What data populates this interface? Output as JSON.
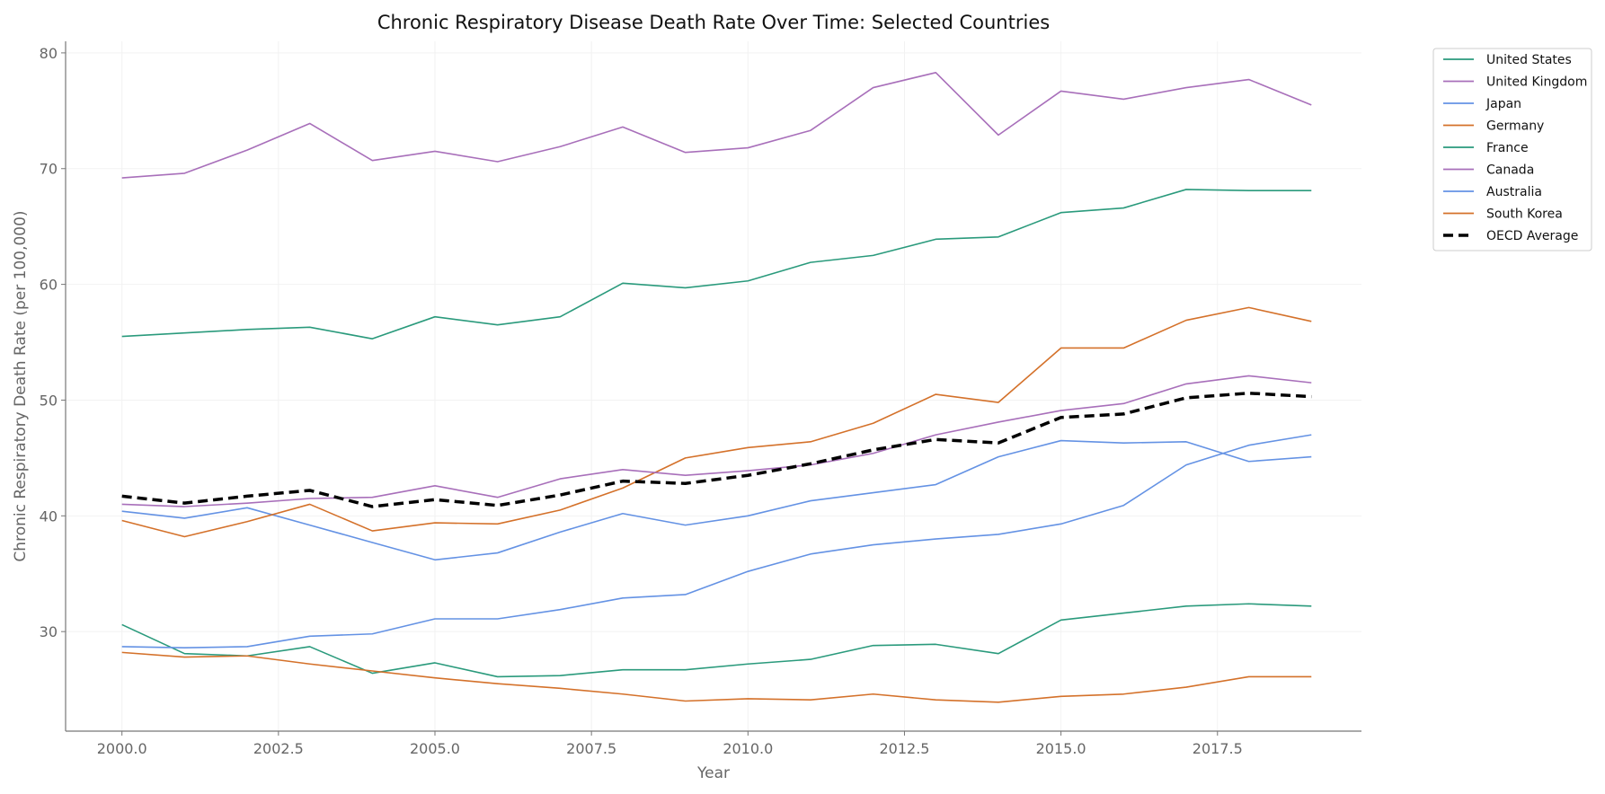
{
  "chart_data": {
    "type": "line",
    "title": "Chronic Respiratory Disease Death Rate Over Time: Selected Countries",
    "xlabel": "Year",
    "ylabel": "Chronic Respiratory Death Rate (per 100,000)",
    "xlim": [
      1999.1,
      2019.8
    ],
    "ylim": [
      21.4,
      81.0
    ],
    "xticks": [
      2000.0,
      2002.5,
      2005.0,
      2007.5,
      2010.0,
      2012.5,
      2015.0,
      2017.5
    ],
    "xtick_labels": [
      "2000.0",
      "2002.5",
      "2005.0",
      "2007.5",
      "2010.0",
      "2012.5",
      "2015.0",
      "2017.5"
    ],
    "yticks": [
      30,
      40,
      50,
      60,
      70,
      80
    ],
    "ytick_labels": [
      "30",
      "40",
      "50",
      "60",
      "70",
      "80"
    ],
    "grid": true,
    "legend_placement": "outside-top-right",
    "x": [
      2000,
      2001,
      2002,
      2003,
      2004,
      2005,
      2006,
      2007,
      2008,
      2009,
      2010,
      2011,
      2012,
      2013,
      2014,
      2015,
      2016,
      2017,
      2018,
      2019
    ],
    "series": [
      {
        "name": "United States",
        "color": "#2a9a7c",
        "dash": false,
        "values": [
          55.5,
          55.8,
          56.1,
          56.3,
          55.3,
          57.2,
          56.5,
          57.2,
          60.1,
          59.7,
          60.3,
          61.9,
          62.5,
          63.9,
          64.1,
          66.2,
          66.6,
          68.2,
          68.1,
          68.1
        ]
      },
      {
        "name": "United Kingdom",
        "color": "#a86fba",
        "dash": false,
        "values": [
          69.2,
          69.6,
          71.6,
          73.9,
          70.7,
          71.5,
          70.6,
          71.9,
          73.6,
          71.4,
          71.8,
          73.3,
          77.0,
          78.3,
          72.9,
          76.7,
          76.0,
          77.0,
          77.7,
          75.5
        ]
      },
      {
        "name": "Japan",
        "color": "#6492e4",
        "dash": false,
        "values": [
          40.4,
          39.8,
          40.7,
          39.2,
          37.7,
          36.2,
          36.8,
          38.6,
          40.2,
          39.2,
          40.0,
          41.3,
          42.0,
          42.7,
          45.1,
          46.5,
          46.3,
          46.4,
          44.7,
          45.1
        ]
      },
      {
        "name": "Germany",
        "color": "#d4712a",
        "dash": false,
        "values": [
          39.6,
          38.2,
          39.5,
          41.0,
          38.7,
          39.4,
          39.3,
          40.5,
          42.4,
          45.0,
          45.9,
          46.4,
          48.0,
          50.5,
          49.8,
          54.5,
          54.5,
          56.9,
          58.0,
          56.8
        ]
      },
      {
        "name": "France",
        "color": "#2a9a7c",
        "dash": false,
        "values": [
          30.6,
          28.1,
          27.9,
          28.7,
          26.4,
          27.3,
          26.1,
          26.2,
          26.7,
          26.7,
          27.2,
          27.6,
          28.8,
          28.9,
          28.1,
          31.0,
          31.6,
          32.2,
          32.4,
          32.2
        ]
      },
      {
        "name": "Canada",
        "color": "#a86fba",
        "dash": false,
        "values": [
          41.0,
          40.8,
          41.1,
          41.5,
          41.6,
          42.6,
          41.6,
          43.2,
          44.0,
          43.5,
          43.9,
          44.4,
          45.4,
          47.0,
          48.1,
          49.1,
          49.7,
          51.4,
          52.1,
          51.5
        ]
      },
      {
        "name": "Australia",
        "color": "#6492e4",
        "dash": false,
        "values": [
          28.7,
          28.6,
          28.7,
          29.6,
          29.8,
          31.1,
          31.1,
          31.9,
          32.9,
          33.2,
          35.2,
          36.7,
          37.5,
          38.0,
          38.4,
          39.3,
          40.9,
          44.4,
          46.1,
          47.0
        ]
      },
      {
        "name": "South Korea",
        "color": "#d4712a",
        "dash": false,
        "values": [
          28.2,
          27.8,
          27.9,
          27.2,
          26.6,
          26.0,
          25.5,
          25.1,
          24.6,
          24.0,
          24.2,
          24.1,
          24.6,
          24.1,
          23.9,
          24.4,
          24.6,
          25.2,
          26.1,
          26.1
        ]
      },
      {
        "name": "OECD Average",
        "color": "#000000",
        "dash": true,
        "values": [
          41.7,
          41.1,
          41.7,
          42.2,
          40.8,
          41.4,
          40.9,
          41.8,
          43.0,
          42.8,
          43.5,
          44.5,
          45.7,
          46.6,
          46.3,
          48.5,
          48.8,
          50.2,
          50.6,
          50.3
        ]
      }
    ]
  }
}
